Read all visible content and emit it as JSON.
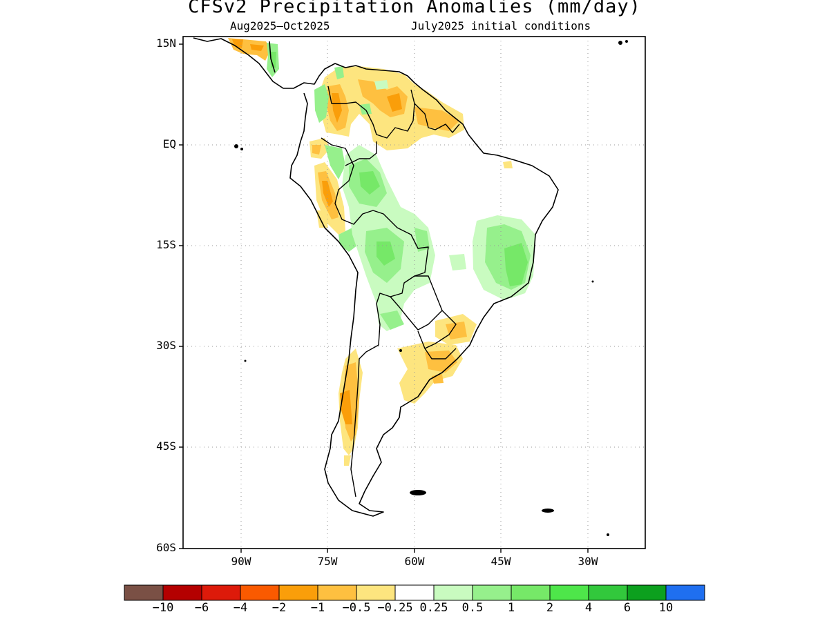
{
  "title": "CFSv2 Precipitation Anomalies (mm/day)",
  "subtitle_left": "Aug2025—Oct2025",
  "subtitle_right": "July2025 initial conditions",
  "map": {
    "projection": "lat-lon",
    "lon_range": [
      -100,
      -20
    ],
    "lat_range": [
      -60,
      15
    ],
    "lat_labels": [
      "15N",
      "EQ",
      "15S",
      "30S",
      "45S",
      "60S"
    ],
    "lon_labels": [
      "90W",
      "75W",
      "60W",
      "45W",
      "30W"
    ],
    "gridlines": "dotted"
  },
  "colorbar": {
    "colors": [
      "#7a5045",
      "#b40000",
      "#dd1a0a",
      "#fa5a00",
      "#fa9e0a",
      "#fec040",
      "#fde57f",
      "#ffffff",
      "#c9fbc0",
      "#96f08c",
      "#76e868",
      "#4ee64a",
      "#32c83c",
      "#0ca01e",
      "#1f6ff0"
    ],
    "labels": [
      "−10",
      "−6",
      "−4",
      "−2",
      "−1",
      "−0.5",
      "−0.25",
      "0.25",
      "0.5",
      "1",
      "2",
      "4",
      "6",
      "10"
    ]
  }
}
